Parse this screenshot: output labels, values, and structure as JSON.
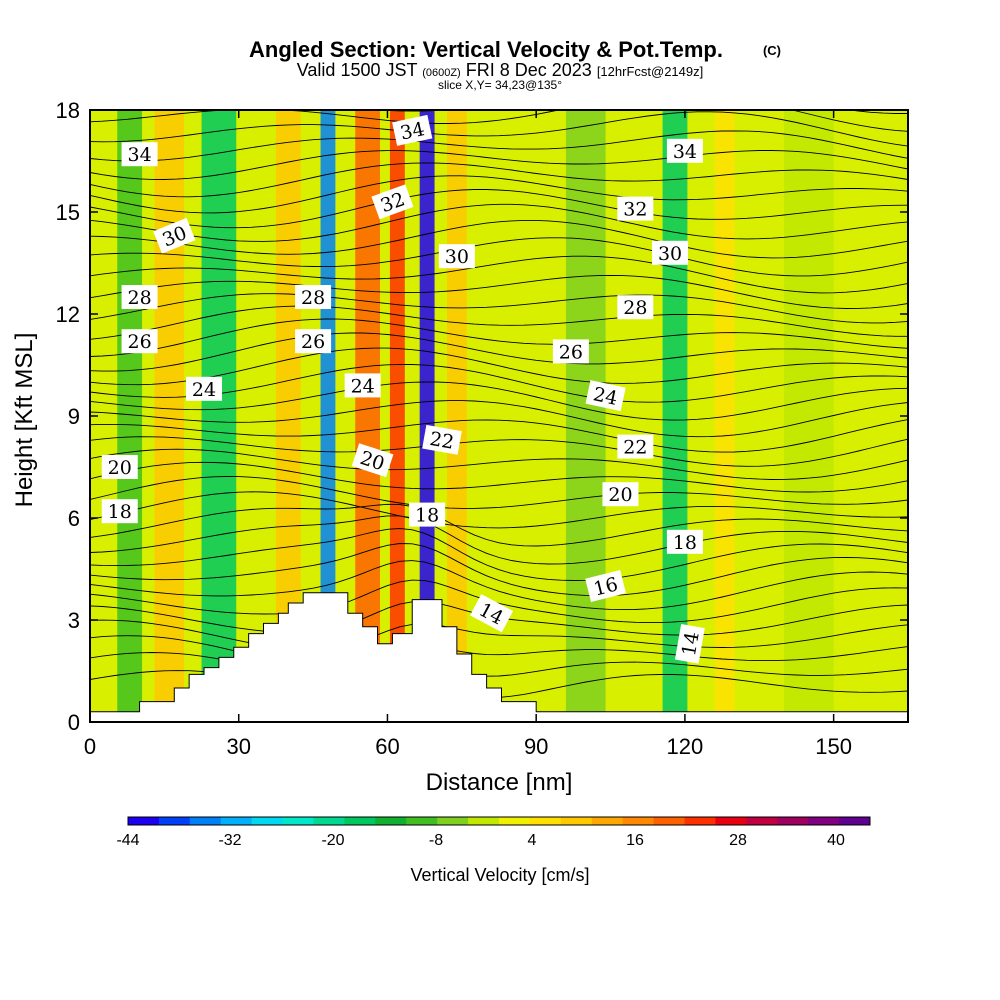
{
  "header": {
    "title_main": "Angled Section: Vertical Velocity & Pot.Temp.",
    "title_mark": "(C)",
    "valid_prefix": "Valid 1500 JST",
    "valid_utc": "(0600Z)",
    "valid_date": "FRI 8 Dec 2023",
    "valid_fcst": "[12hrFcst@2149z]",
    "slice": "slice X,Y= 34,23@135°"
  },
  "colorbar": {
    "label": "Vertical Velocity [cm/s]",
    "tick_labels": [
      "-44",
      "-32",
      "-20",
      "-8",
      "4",
      "16",
      "28",
      "40"
    ],
    "colors": [
      "#1e00f0",
      "#0040f8",
      "#0080f8",
      "#00b0f8",
      "#00d8f0",
      "#00e8c8",
      "#00d890",
      "#00c860",
      "#10b030",
      "#40c020",
      "#80d020",
      "#c0e800",
      "#f0f000",
      "#ffe000",
      "#ffc800",
      "#ffa800",
      "#ff8800",
      "#ff6000",
      "#ff3000",
      "#e80010",
      "#c00040",
      "#a00060",
      "#800080",
      "#600090"
    ]
  },
  "chart_data": {
    "type": "contour",
    "xlabel": "Distance [nm]",
    "ylabel": "Height [Kft MSL]",
    "xlim": [
      0,
      165
    ],
    "ylim": [
      0,
      18
    ],
    "x_tick_labels": [
      "0",
      "30",
      "60",
      "90",
      "120",
      "150"
    ],
    "y_tick_labels": [
      "0",
      "3",
      "6",
      "9",
      "12",
      "15",
      "18"
    ],
    "x_ticks": [
      0,
      30,
      60,
      90,
      120,
      150
    ],
    "y_ticks": [
      0,
      3,
      6,
      9,
      12,
      15,
      18
    ],
    "terrain": [
      [
        0,
        0.3
      ],
      [
        10,
        0.3
      ],
      [
        10,
        0.6
      ],
      [
        17,
        0.6
      ],
      [
        17,
        1.0
      ],
      [
        20,
        1.0
      ],
      [
        20,
        1.4
      ],
      [
        23,
        1.4
      ],
      [
        23,
        1.6
      ],
      [
        26,
        1.6
      ],
      [
        26,
        1.9
      ],
      [
        29,
        1.9
      ],
      [
        29,
        2.2
      ],
      [
        32,
        2.2
      ],
      [
        32,
        2.6
      ],
      [
        35,
        2.6
      ],
      [
        35,
        2.9
      ],
      [
        38,
        2.9
      ],
      [
        38,
        3.2
      ],
      [
        40,
        3.2
      ],
      [
        40,
        3.5
      ],
      [
        43,
        3.5
      ],
      [
        43,
        3.8
      ],
      [
        52,
        3.8
      ],
      [
        52,
        3.2
      ],
      [
        55,
        3.2
      ],
      [
        55,
        2.8
      ],
      [
        58,
        2.8
      ],
      [
        58,
        2.3
      ],
      [
        61,
        2.3
      ],
      [
        61,
        2.6
      ],
      [
        65,
        2.6
      ],
      [
        65,
        3.6
      ],
      [
        71,
        3.6
      ],
      [
        71,
        2.8
      ],
      [
        74,
        2.8
      ],
      [
        74,
        2.0
      ],
      [
        77,
        2.0
      ],
      [
        77,
        1.4
      ],
      [
        80,
        1.4
      ],
      [
        80,
        1.0
      ],
      [
        83,
        1.0
      ],
      [
        83,
        0.6
      ],
      [
        90,
        0.6
      ],
      [
        90,
        0.3
      ],
      [
        165,
        0.3
      ]
    ],
    "velocity_field_bands": [
      {
        "x_center": 8,
        "value": -6,
        "width": 5
      },
      {
        "x_center": 16,
        "value": 14,
        "width": 6
      },
      {
        "x_center": 26,
        "value": -14,
        "width": 7
      },
      {
        "x_center": 40,
        "value": 14,
        "width": 5
      },
      {
        "x_center": 48,
        "value": -36,
        "width": 3
      },
      {
        "x_center": 56,
        "value": 24,
        "width": 5
      },
      {
        "x_center": 62,
        "value": 30,
        "width": 3
      },
      {
        "x_center": 68,
        "value": -44,
        "width": 3
      },
      {
        "x_center": 74,
        "value": 12,
        "width": 4
      },
      {
        "x_center": 100,
        "value": -2,
        "width": 8
      },
      {
        "x_center": 118,
        "value": -14,
        "width": 5
      },
      {
        "x_center": 128,
        "value": 10,
        "width": 4
      },
      {
        "x_center": 145,
        "value": 0,
        "width": 10
      }
    ],
    "theta_contour_labels": [
      {
        "text": "34",
        "x": 10,
        "y": 16.7,
        "rot": 0
      },
      {
        "text": "30",
        "x": 17,
        "y": 14.3,
        "rot": -22
      },
      {
        "text": "28",
        "x": 10,
        "y": 12.5,
        "rot": 0
      },
      {
        "text": "26",
        "x": 10,
        "y": 11.2,
        "rot": 0
      },
      {
        "text": "24",
        "x": 23,
        "y": 9.8,
        "rot": 0
      },
      {
        "text": "20",
        "x": 6,
        "y": 7.5,
        "rot": 0
      },
      {
        "text": "18",
        "x": 6,
        "y": 6.2,
        "rot": 0
      },
      {
        "text": "28",
        "x": 45,
        "y": 12.5,
        "rot": 0
      },
      {
        "text": "26",
        "x": 45,
        "y": 11.2,
        "rot": 0
      },
      {
        "text": "24",
        "x": 55,
        "y": 9.9,
        "rot": 0
      },
      {
        "text": "20",
        "x": 57,
        "y": 7.7,
        "rot": 18
      },
      {
        "text": "32",
        "x": 61,
        "y": 15.3,
        "rot": -20
      },
      {
        "text": "34",
        "x": 65,
        "y": 17.4,
        "rot": -12
      },
      {
        "text": "22",
        "x": 71,
        "y": 8.3,
        "rot": 10
      },
      {
        "text": "18",
        "x": 68,
        "y": 6.1,
        "rot": 0
      },
      {
        "text": "30",
        "x": 74,
        "y": 13.7,
        "rot": 0
      },
      {
        "text": "14",
        "x": 81,
        "y": 3.2,
        "rot": 28
      },
      {
        "text": "26",
        "x": 97,
        "y": 10.9,
        "rot": 0
      },
      {
        "text": "16",
        "x": 104,
        "y": 4.0,
        "rot": -14
      },
      {
        "text": "24",
        "x": 104,
        "y": 9.6,
        "rot": 12
      },
      {
        "text": "20",
        "x": 107,
        "y": 6.7,
        "rot": 0
      },
      {
        "text": "32",
        "x": 110,
        "y": 15.1,
        "rot": 0
      },
      {
        "text": "28",
        "x": 110,
        "y": 12.2,
        "rot": 0
      },
      {
        "text": "22",
        "x": 110,
        "y": 8.1,
        "rot": 0
      },
      {
        "text": "30",
        "x": 117,
        "y": 13.8,
        "rot": 0
      },
      {
        "text": "34",
        "x": 120,
        "y": 16.8,
        "rot": 0
      },
      {
        "text": "18",
        "x": 120,
        "y": 5.3,
        "rot": 0
      },
      {
        "text": "14",
        "x": 121,
        "y": 2.3,
        "rot": -80
      }
    ]
  }
}
